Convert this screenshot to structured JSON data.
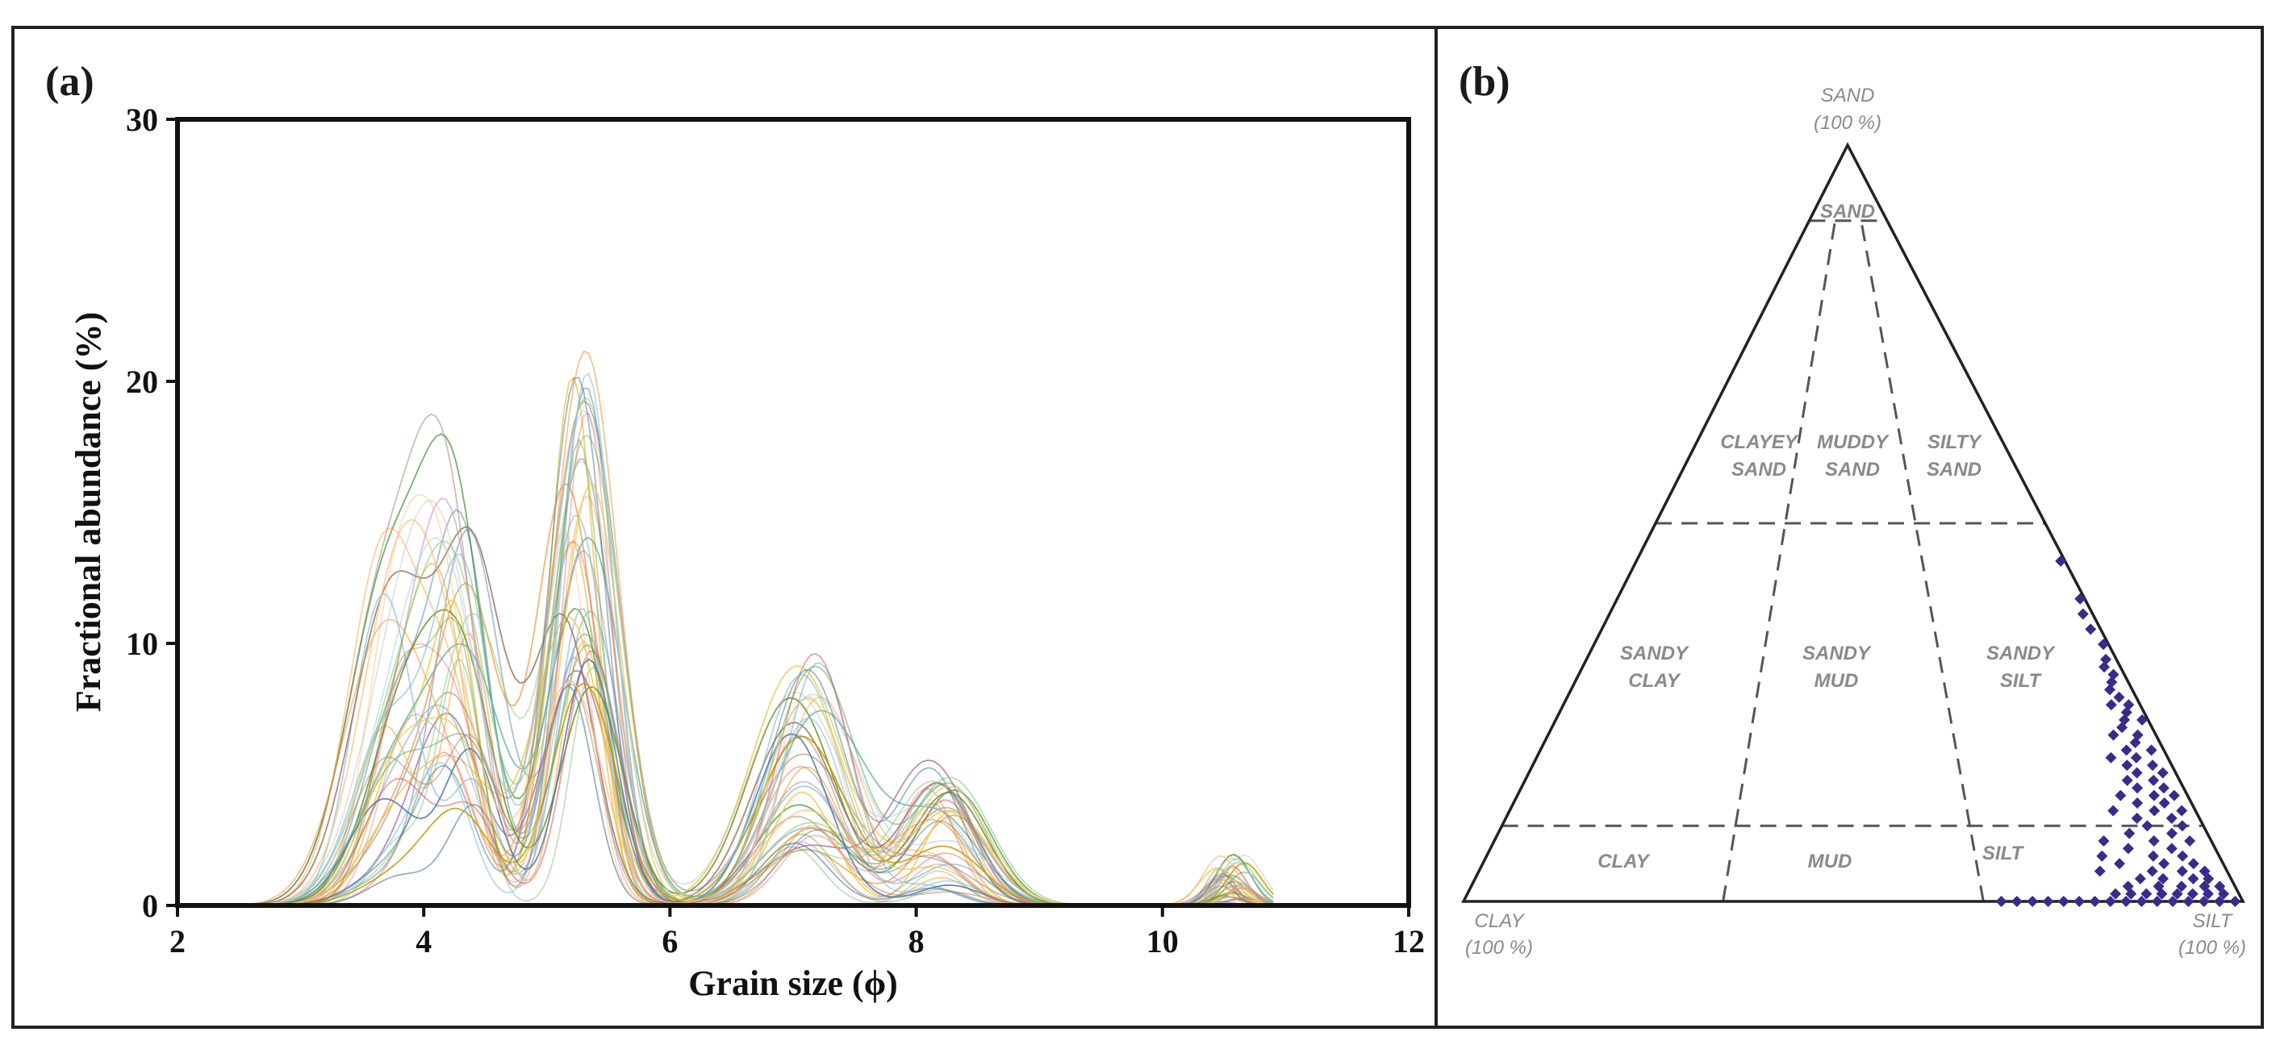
{
  "panel_a": {
    "label": "(a)",
    "colors": [
      "#4e79a7",
      "#f28e2b",
      "#59a14f",
      "#e15759",
      "#76b7b2",
      "#edc948",
      "#b07aa1",
      "#9c755f",
      "#a0cbe8",
      "#ffbe7d",
      "#8cd17d",
      "#bab0ac",
      "#2f6f8f",
      "#c4a000",
      "#6b8e23"
    ],
    "chart_data": {
      "type": "line",
      "title": "",
      "xlabel": "Grain size (ϕ)",
      "ylabel": "Fractional abundance (%)",
      "xlim": [
        2,
        12
      ],
      "ylim": [
        0,
        30
      ],
      "x_ticks": [
        "2",
        "4",
        "6",
        "8",
        "10",
        "12"
      ],
      "y_ticks": [
        "0",
        "10",
        "20",
        "30"
      ],
      "n_series": 40,
      "x_range_data": [
        2.5,
        10.9
      ],
      "envelope_peaks": [
        {
          "x": 3.8,
          "y_min": 1,
          "y_max": 14
        },
        {
          "x": 4.3,
          "y_min": 3,
          "y_max": 15.5
        },
        {
          "x": 5.25,
          "y_min": 8,
          "y_max": 21.3
        },
        {
          "x": 7.1,
          "y_min": 2,
          "y_max": 10.5
        },
        {
          "x": 8.2,
          "y_min": 0.5,
          "y_max": 5.5
        },
        {
          "x": 10.55,
          "y_min": 0,
          "y_max": 2.2
        }
      ]
    }
  },
  "panel_b": {
    "label": "(b)",
    "point_color": "#3b2a8c",
    "chart_data": {
      "type": "scatter",
      "diagram": "ternary",
      "vertices": {
        "top": {
          "name": "SAND",
          "sub": "(100 %)"
        },
        "left": {
          "name": "CLAY",
          "sub": "(100 %)"
        },
        "right": {
          "name": "SILT",
          "sub": "(100 %)"
        }
      },
      "sand_boundaries_pct": [
        10,
        50,
        90
      ],
      "silt_fraction_boundaries": [
        0.333,
        0.667
      ],
      "fields": [
        "SAND",
        "CLAYEY SAND",
        "MUDDY SAND",
        "SILTY SAND",
        "SANDY CLAY",
        "SANDY MUD",
        "SANDY SILT",
        "CLAY",
        "MUD",
        "SILT"
      ],
      "points_sand_pct_silt_fraction": [
        [
          0,
          0.69
        ],
        [
          0,
          0.71
        ],
        [
          0,
          0.73
        ],
        [
          0,
          0.75
        ],
        [
          0,
          0.77
        ],
        [
          0,
          0.79
        ],
        [
          0,
          0.81
        ],
        [
          0,
          0.83
        ],
        [
          0,
          0.85
        ],
        [
          0,
          0.87
        ],
        [
          0,
          0.89
        ],
        [
          0,
          0.91
        ],
        [
          0,
          0.93
        ],
        [
          0,
          0.95
        ],
        [
          0,
          0.97
        ],
        [
          0,
          0.99
        ],
        [
          1,
          0.84
        ],
        [
          1,
          0.86
        ],
        [
          1,
          0.88
        ],
        [
          1,
          0.9
        ],
        [
          1,
          0.92
        ],
        [
          1,
          0.94
        ],
        [
          1,
          0.96
        ],
        [
          1,
          0.98
        ],
        [
          2,
          0.86
        ],
        [
          2,
          0.9
        ],
        [
          2,
          0.93
        ],
        [
          2,
          0.96
        ],
        [
          2,
          0.98
        ],
        [
          3,
          0.88
        ],
        [
          3,
          0.91
        ],
        [
          3,
          0.95
        ],
        [
          3,
          0.97
        ],
        [
          4,
          0.83
        ],
        [
          4,
          0.9
        ],
        [
          4,
          0.94
        ],
        [
          4,
          0.97
        ],
        [
          5,
          0.86
        ],
        [
          5,
          0.92
        ],
        [
          5,
          0.96
        ],
        [
          6,
          0.84
        ],
        [
          6,
          0.91
        ],
        [
          6,
          0.95
        ],
        [
          7,
          0.88
        ],
        [
          7,
          0.94
        ],
        [
          8,
          0.85
        ],
        [
          8,
          0.92
        ],
        [
          8,
          0.97
        ],
        [
          9,
          0.89
        ],
        [
          9,
          0.95
        ],
        [
          10,
          0.92
        ],
        [
          10,
          0.97
        ],
        [
          11,
          0.91
        ],
        [
          11,
          0.96
        ],
        [
          12,
          0.88
        ],
        [
          12,
          0.94
        ],
        [
          12,
          0.98
        ],
        [
          13,
          0.92
        ],
        [
          13,
          0.96
        ],
        [
          14,
          0.9
        ],
        [
          14,
          0.95
        ],
        [
          14,
          0.98
        ],
        [
          15,
          0.93
        ],
        [
          15,
          0.97
        ],
        [
          16,
          0.92
        ],
        [
          16,
          0.96
        ],
        [
          17,
          0.94
        ],
        [
          17,
          0.98
        ],
        [
          18,
          0.93
        ],
        [
          18,
          0.97
        ],
        [
          19,
          0.91
        ],
        [
          19,
          0.95
        ],
        [
          20,
          0.94
        ],
        [
          20,
          0.98
        ],
        [
          21,
          0.96
        ],
        [
          22,
          0.93
        ],
        [
          22,
          0.97
        ],
        [
          23,
          0.95
        ],
        [
          24,
          0.96
        ],
        [
          24,
          0.99
        ],
        [
          25,
          0.97
        ],
        [
          26,
          0.95
        ],
        [
          26,
          0.98
        ],
        [
          27,
          0.97
        ],
        [
          28,
          0.96
        ],
        [
          29,
          0.97
        ],
        [
          30,
          0.98
        ],
        [
          31,
          0.97
        ],
        [
          32,
          0.98
        ],
        [
          34,
          0.99
        ],
        [
          36,
          0.98
        ],
        [
          38,
          0.98
        ],
        [
          40,
          0.99
        ],
        [
          45,
          0.99
        ]
      ]
    }
  }
}
